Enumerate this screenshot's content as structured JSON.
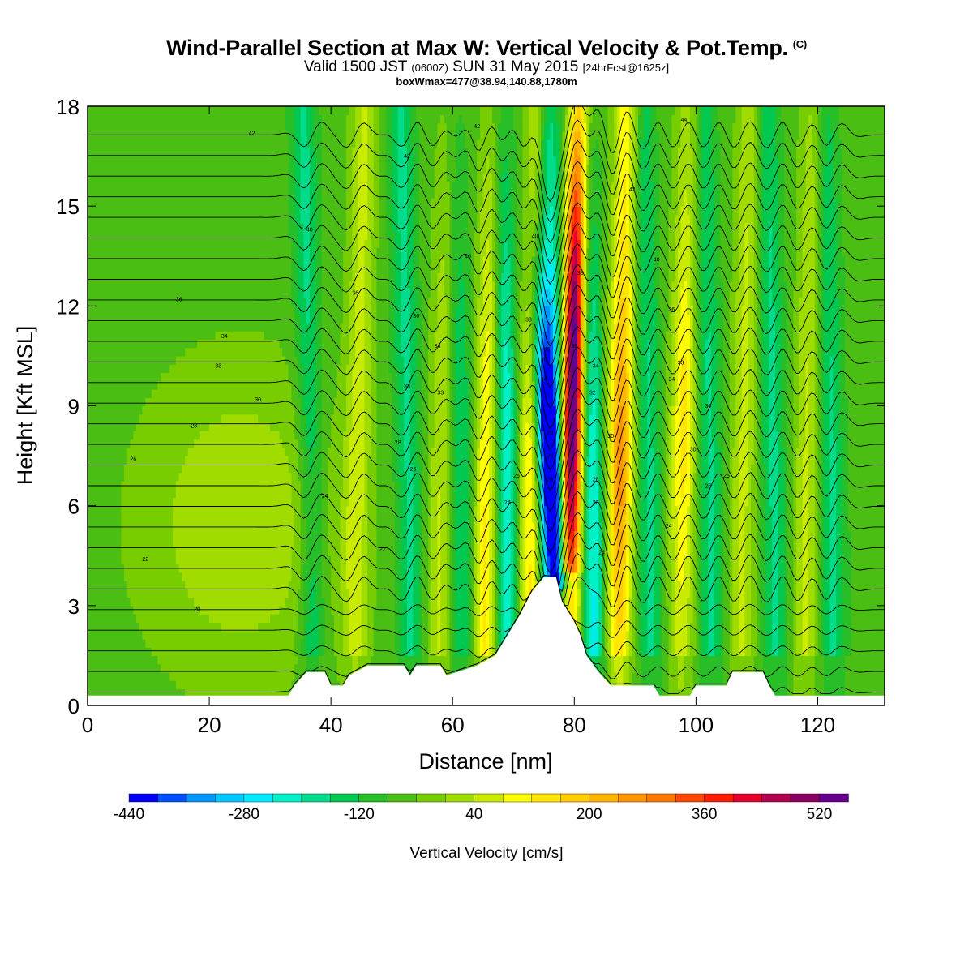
{
  "header": {
    "title": "Wind-Parallel Section at Max W: Vertical Velocity & Pot.Temp.",
    "copyright": "(C)",
    "valid_prefix": "Valid 1500 JST",
    "valid_utc": "(0600Z)",
    "valid_date": "SUN 31 May 2015",
    "forecast": "[24hrFcst@1625z]",
    "box_wmax": "boxWmax=477@38.94,140.88,1780m"
  },
  "chart_data": {
    "type": "heatmap",
    "title": "Wind-Parallel Section at Max W: Vertical Velocity & Pot.Temp.",
    "xlabel": "Distance [nm]",
    "ylabel": "Height [Kft MSL]",
    "xlim": [
      0,
      131
    ],
    "ylim": [
      0,
      18
    ],
    "x_ticks": [
      0,
      20,
      40,
      60,
      80,
      100,
      120
    ],
    "y_ticks": [
      0,
      3,
      6,
      9,
      12,
      15,
      18
    ],
    "grid": false,
    "colorbar": {
      "label": "Vertical Velocity [cm/s]",
      "tick_labels": [
        "-440",
        "-280",
        "-120",
        "40",
        "200",
        "360",
        "520"
      ],
      "tick_values": [
        -440,
        -280,
        -120,
        40,
        200,
        360,
        520
      ],
      "min": -440,
      "step": 40,
      "colors": [
        "#0000ff",
        "#0050ff",
        "#0096ff",
        "#00c8ff",
        "#00eaff",
        "#00f0c8",
        "#00dc8c",
        "#00c850",
        "#28be28",
        "#4bbe14",
        "#78cd00",
        "#a0dc00",
        "#c8eb00",
        "#ffff00",
        "#ffe600",
        "#ffcd00",
        "#ffb400",
        "#ff9600",
        "#ff7800",
        "#ff4600",
        "#ff1e00",
        "#e6002d",
        "#b40050",
        "#8c0064",
        "#64008c"
      ]
    },
    "wave_columns_nm": [
      37,
      44,
      53,
      58,
      61.5,
      65.5,
      69,
      72.5,
      76.8,
      79.6,
      83,
      87.3,
      92.5,
      97.5,
      102.5,
      107.5,
      113,
      118,
      122.5
    ],
    "vertical_velocity_features": [
      {
        "x": 77,
        "z_kft": 7.5,
        "w": -440
      },
      {
        "x": 79.8,
        "z_kft": 10,
        "w": 477
      },
      {
        "x": 25,
        "z_kft": 5.5,
        "w": 50
      }
    ],
    "terrain_kft": [
      [
        0,
        0.3
      ],
      [
        33,
        0.3
      ],
      [
        34,
        0.6
      ],
      [
        36,
        1.0
      ],
      [
        39,
        1.0
      ],
      [
        40,
        0.6
      ],
      [
        42,
        0.6
      ],
      [
        43,
        0.9
      ],
      [
        46,
        1.2
      ],
      [
        52,
        1.2
      ],
      [
        53,
        0.9
      ],
      [
        54,
        1.2
      ],
      [
        58,
        1.2
      ],
      [
        59,
        0.9
      ],
      [
        64,
        1.2
      ],
      [
        67,
        1.5
      ],
      [
        69,
        2.1
      ],
      [
        71,
        2.7
      ],
      [
        73,
        3.4
      ],
      [
        75,
        3.85
      ],
      [
        77,
        3.85
      ],
      [
        78,
        3.1
      ],
      [
        80,
        2.5
      ],
      [
        81,
        2.1
      ],
      [
        82,
        1.5
      ],
      [
        84,
        1.0
      ],
      [
        86,
        0.6
      ],
      [
        93,
        0.6
      ],
      [
        94,
        0.3
      ],
      [
        99,
        0.3
      ],
      [
        100,
        0.6
      ],
      [
        105,
        0.6
      ],
      [
        106,
        1.0
      ],
      [
        111,
        1.0
      ],
      [
        112,
        0.6
      ],
      [
        113,
        0.3
      ],
      [
        131,
        0.3
      ]
    ],
    "theta_contour_labels": [
      {
        "x": 27,
        "z_kft": 17.2,
        "text": "42"
      },
      {
        "x": 52.5,
        "z_kft": 16.5,
        "text": "42"
      },
      {
        "x": 64,
        "z_kft": 17.4,
        "text": "42"
      },
      {
        "x": 98,
        "z_kft": 17.6,
        "text": "44"
      },
      {
        "x": 89.5,
        "z_kft": 15.5,
        "text": "42"
      },
      {
        "x": 36.5,
        "z_kft": 14.3,
        "text": "40"
      },
      {
        "x": 62.5,
        "z_kft": 13.5,
        "text": "40"
      },
      {
        "x": 73.5,
        "z_kft": 14.1,
        "text": "40"
      },
      {
        "x": 93.5,
        "z_kft": 13.4,
        "text": "40"
      },
      {
        "x": 15,
        "z_kft": 12.2,
        "text": "36"
      },
      {
        "x": 44,
        "z_kft": 12.4,
        "text": "36"
      },
      {
        "x": 81,
        "z_kft": 13.0,
        "text": "38"
      },
      {
        "x": 54,
        "z_kft": 11.7,
        "text": "36"
      },
      {
        "x": 72.5,
        "z_kft": 11.6,
        "text": "38"
      },
      {
        "x": 22.5,
        "z_kft": 11.1,
        "text": "34"
      },
      {
        "x": 96,
        "z_kft": 11.9,
        "text": "36"
      },
      {
        "x": 57.5,
        "z_kft": 10.8,
        "text": "34"
      },
      {
        "x": 75.5,
        "z_kft": 10.7,
        "text": "36"
      },
      {
        "x": 80,
        "z_kft": 10.8,
        "text": "36"
      },
      {
        "x": 21.5,
        "z_kft": 10.2,
        "text": "33"
      },
      {
        "x": 75,
        "z_kft": 10.4,
        "text": "36"
      },
      {
        "x": 97.5,
        "z_kft": 10.3,
        "text": "33"
      },
      {
        "x": 83.5,
        "z_kft": 10.2,
        "text": "34"
      },
      {
        "x": 75,
        "z_kft": 9.8,
        "text": "34"
      },
      {
        "x": 52.5,
        "z_kft": 9.6,
        "text": "33"
      },
      {
        "x": 96,
        "z_kft": 9.8,
        "text": "34"
      },
      {
        "x": 58,
        "z_kft": 9.4,
        "text": "33"
      },
      {
        "x": 83,
        "z_kft": 9.4,
        "text": "32"
      },
      {
        "x": 28,
        "z_kft": 9.2,
        "text": "30"
      },
      {
        "x": 102,
        "z_kft": 9.0,
        "text": "30"
      },
      {
        "x": 17.5,
        "z_kft": 8.4,
        "text": "28"
      },
      {
        "x": 76,
        "z_kft": 8.2,
        "text": "28"
      },
      {
        "x": 86,
        "z_kft": 8.1,
        "text": "30"
      },
      {
        "x": 51,
        "z_kft": 7.9,
        "text": "28"
      },
      {
        "x": 99.5,
        "z_kft": 7.7,
        "text": "30"
      },
      {
        "x": 7.5,
        "z_kft": 7.4,
        "text": "26"
      },
      {
        "x": 76,
        "z_kft": 7.5,
        "text": "26"
      },
      {
        "x": 53.5,
        "z_kft": 7.1,
        "text": "26"
      },
      {
        "x": 70.5,
        "z_kft": 6.9,
        "text": "26"
      },
      {
        "x": 105,
        "z_kft": 6.9,
        "text": "26"
      },
      {
        "x": 102,
        "z_kft": 6.6,
        "text": "26"
      },
      {
        "x": 76,
        "z_kft": 6.8,
        "text": "26"
      },
      {
        "x": 83.5,
        "z_kft": 6.8,
        "text": "28"
      },
      {
        "x": 39,
        "z_kft": 6.3,
        "text": "24"
      },
      {
        "x": 69,
        "z_kft": 6.1,
        "text": "24"
      },
      {
        "x": 83.5,
        "z_kft": 6.1,
        "text": "26"
      },
      {
        "x": 95.5,
        "z_kft": 5.4,
        "text": "24"
      },
      {
        "x": 48.5,
        "z_kft": 4.7,
        "text": "22"
      },
      {
        "x": 84.5,
        "z_kft": 4.6,
        "text": "24"
      },
      {
        "x": 9.5,
        "z_kft": 4.4,
        "text": "22"
      },
      {
        "x": 18,
        "z_kft": 2.9,
        "text": "20"
      }
    ]
  }
}
